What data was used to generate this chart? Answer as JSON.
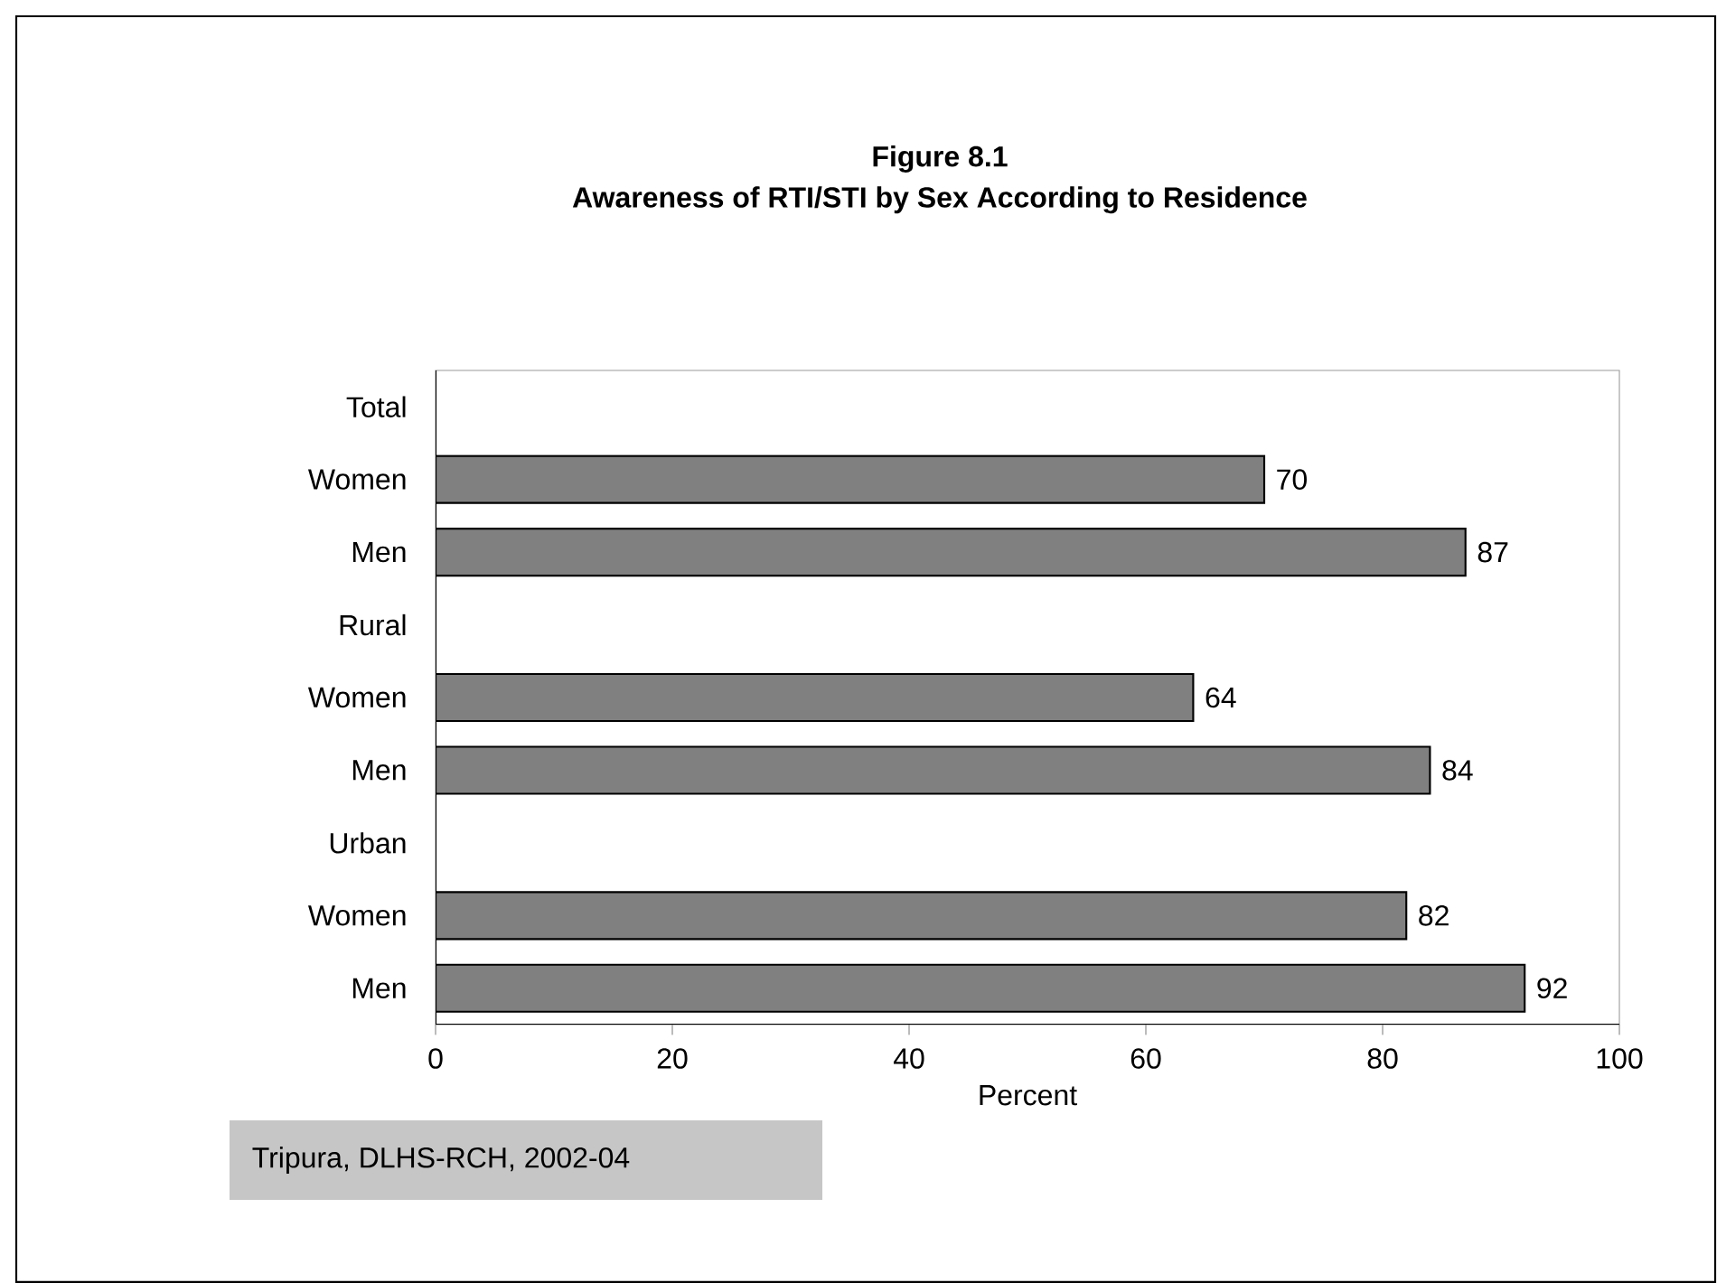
{
  "chart_data": {
    "type": "bar",
    "orientation": "horizontal",
    "title": "Figure 8.1",
    "subtitle": "Awareness of RTI/STI by Sex According to Residence",
    "categories": [
      "Total",
      "Women",
      "Men",
      "Rural",
      "Women",
      "Men",
      "Urban",
      "Women",
      "Men"
    ],
    "values": [
      null,
      70,
      87,
      null,
      64,
      84,
      null,
      82,
      92
    ],
    "color": "#808080",
    "xlim": [
      0,
      100
    ],
    "xticks": [
      0,
      20,
      40,
      60,
      80,
      100
    ],
    "xlabel": "Percent",
    "data_labels": true,
    "annotations": [
      "Tripura, DLHS-RCH, 2002-04"
    ]
  }
}
